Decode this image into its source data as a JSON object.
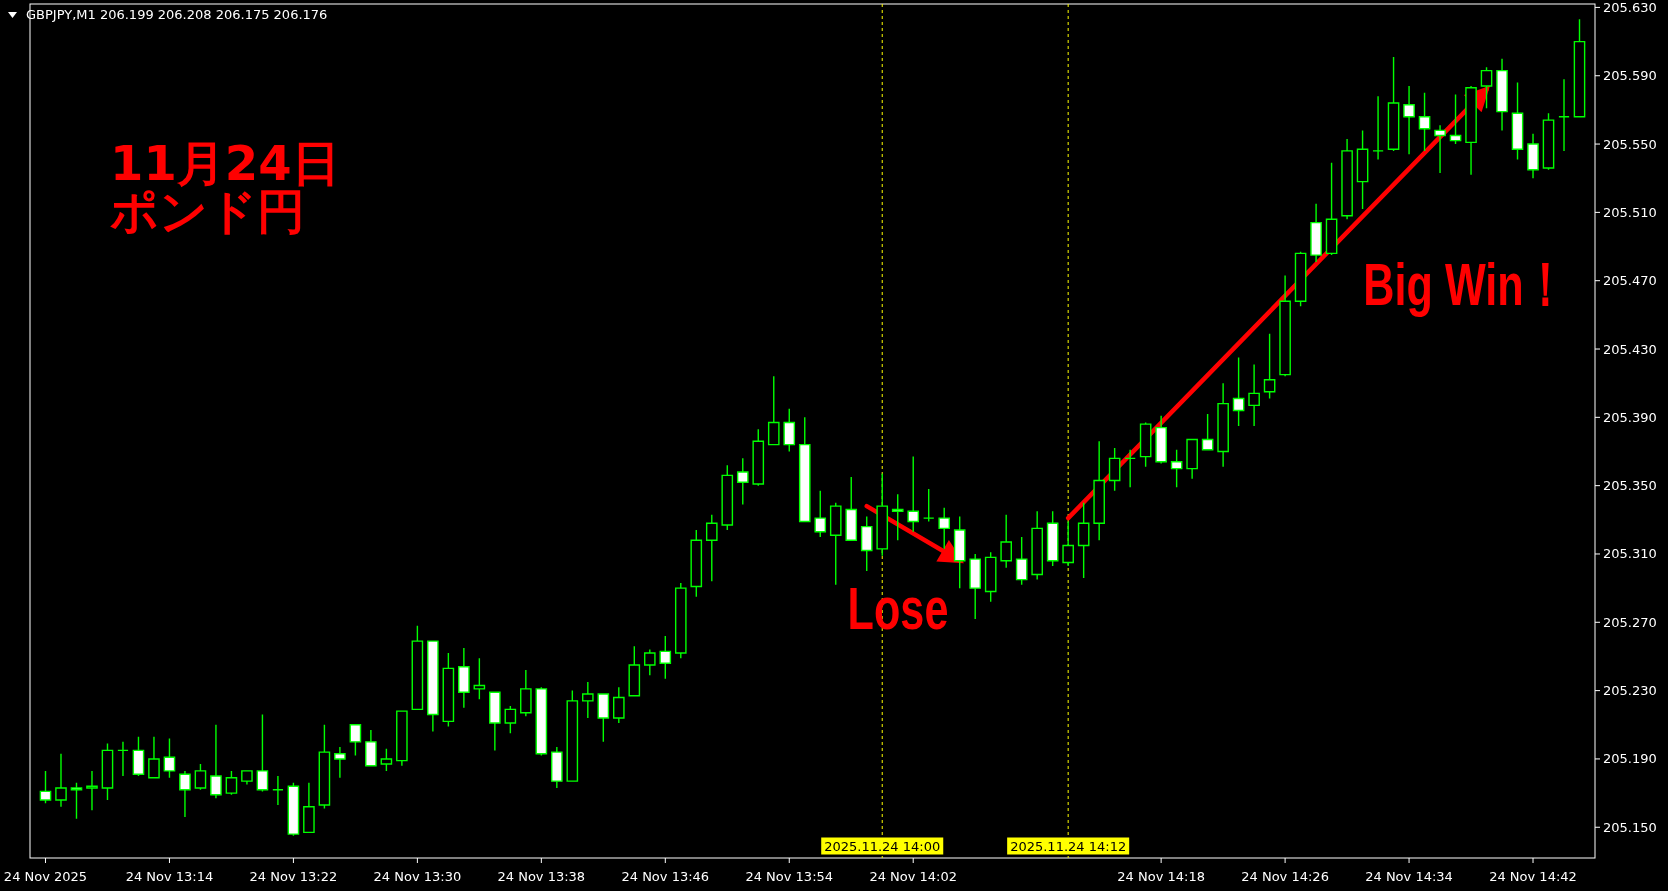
{
  "chart_data": {
    "type": "candlestick",
    "title": "GBPJPY,M1 206.199 206.208 206.175 206.176",
    "annotations": [
      "11月24日",
      "ポンド円",
      "Lose",
      "Big Win！"
    ],
    "color": "#00ff00",
    "x": [
      "2025-11-24T13:06",
      "2025-11-24T13:07",
      "2025-11-24T13:08",
      "2025-11-24T13:09",
      "2025-11-24T13:10",
      "2025-11-24T13:11",
      "2025-11-24T13:12",
      "2025-11-24T13:13",
      "2025-11-24T13:14",
      "2025-11-24T13:15",
      "2025-11-24T13:16",
      "2025-11-24T13:17",
      "2025-11-24T13:18",
      "2025-11-24T13:19",
      "2025-11-24T13:20",
      "2025-11-24T13:21",
      "2025-11-24T13:22",
      "2025-11-24T13:23",
      "2025-11-24T13:24",
      "2025-11-24T13:25",
      "2025-11-24T13:26",
      "2025-11-24T13:27",
      "2025-11-24T13:28",
      "2025-11-24T13:29",
      "2025-11-24T13:30",
      "2025-11-24T13:31",
      "2025-11-24T13:32",
      "2025-11-24T13:33",
      "2025-11-24T13:34",
      "2025-11-24T13:35",
      "2025-11-24T13:36",
      "2025-11-24T13:37",
      "2025-11-24T13:38",
      "2025-11-24T13:39",
      "2025-11-24T13:40",
      "2025-11-24T13:41",
      "2025-11-24T13:42",
      "2025-11-24T13:43",
      "2025-11-24T13:44",
      "2025-11-24T13:45",
      "2025-11-24T13:46",
      "2025-11-24T13:47",
      "2025-11-24T13:48",
      "2025-11-24T13:49",
      "2025-11-24T13:50",
      "2025-11-24T13:51",
      "2025-11-24T13:52",
      "2025-11-24T13:53",
      "2025-11-24T13:54",
      "2025-11-24T13:55",
      "2025-11-24T13:56",
      "2025-11-24T13:57",
      "2025-11-24T13:58",
      "2025-11-24T13:59",
      "2025-11-24T14:00",
      "2025-11-24T14:01",
      "2025-11-24T14:02",
      "2025-11-24T14:03",
      "2025-11-24T14:04",
      "2025-11-24T14:05",
      "2025-11-24T14:06",
      "2025-11-24T14:07",
      "2025-11-24T14:08",
      "2025-11-24T14:09",
      "2025-11-24T14:10",
      "2025-11-24T14:11",
      "2025-11-24T14:12",
      "2025-11-24T14:13",
      "2025-11-24T14:14",
      "2025-11-24T14:15",
      "2025-11-24T14:16",
      "2025-11-24T14:17",
      "2025-11-24T14:18",
      "2025-11-24T14:19",
      "2025-11-24T14:20",
      "2025-11-24T14:21",
      "2025-11-24T14:22",
      "2025-11-24T14:23",
      "2025-11-24T14:24",
      "2025-11-24T14:25",
      "2025-11-24T14:26",
      "2025-11-24T14:27",
      "2025-11-24T14:28",
      "2025-11-24T14:29",
      "2025-11-24T14:30",
      "2025-11-24T14:31",
      "2025-11-24T14:32",
      "2025-11-24T14:33",
      "2025-11-24T14:34",
      "2025-11-24T14:35",
      "2025-11-24T14:36",
      "2025-11-24T14:37",
      "2025-11-24T14:38",
      "2025-11-24T14:39",
      "2025-11-24T14:40",
      "2025-11-24T14:41",
      "2025-11-24T14:42",
      "2025-11-24T14:43",
      "2025-11-24T14:44",
      "2025-11-24T14:45"
    ],
    "ohlc": [
      [
        205.171,
        205.183,
        205.164,
        205.166
      ],
      [
        205.166,
        205.193,
        205.162,
        205.173
      ],
      [
        205.173,
        205.176,
        205.155,
        205.172
      ],
      [
        205.173,
        205.183,
        205.16,
        205.174
      ],
      [
        205.173,
        205.199,
        205.166,
        205.195
      ],
      [
        205.195,
        205.2,
        205.18,
        205.195
      ],
      [
        205.195,
        205.203,
        205.18,
        205.181
      ],
      [
        205.179,
        205.203,
        205.179,
        205.19
      ],
      [
        205.191,
        205.202,
        205.179,
        205.183
      ],
      [
        205.181,
        205.183,
        205.156,
        205.172
      ],
      [
        205.173,
        205.187,
        205.172,
        205.183
      ],
      [
        205.18,
        205.21,
        205.167,
        205.169
      ],
      [
        205.17,
        205.183,
        205.169,
        205.179
      ],
      [
        205.177,
        205.183,
        205.175,
        205.183
      ],
      [
        205.183,
        205.216,
        205.171,
        205.172
      ],
      [
        205.172,
        205.18,
        205.163,
        205.172
      ],
      [
        205.174,
        205.176,
        205.145,
        205.146
      ],
      [
        205.147,
        205.176,
        205.147,
        205.162
      ],
      [
        205.163,
        205.21,
        205.161,
        205.194
      ],
      [
        205.193,
        205.197,
        205.179,
        205.19
      ],
      [
        205.21,
        205.21,
        205.192,
        205.2
      ],
      [
        205.2,
        205.207,
        205.186,
        205.186
      ],
      [
        205.187,
        205.196,
        205.183,
        205.19
      ],
      [
        205.189,
        205.218,
        205.186,
        205.218
      ],
      [
        205.219,
        205.268,
        205.219,
        205.259
      ],
      [
        205.259,
        205.259,
        205.206,
        205.216
      ],
      [
        205.212,
        205.252,
        205.209,
        205.243
      ],
      [
        205.244,
        205.255,
        205.22,
        205.229
      ],
      [
        205.231,
        205.249,
        205.225,
        205.233
      ],
      [
        205.229,
        205.229,
        205.195,
        205.211
      ],
      [
        205.211,
        205.221,
        205.205,
        205.219
      ],
      [
        205.217,
        205.242,
        205.215,
        205.231
      ],
      [
        205.231,
        205.232,
        205.192,
        205.193
      ],
      [
        205.194,
        205.197,
        205.173,
        205.177
      ],
      [
        205.177,
        205.23,
        205.177,
        205.224
      ],
      [
        205.224,
        205.235,
        205.214,
        205.228
      ],
      [
        205.228,
        205.228,
        205.2,
        205.214
      ],
      [
        205.214,
        205.232,
        205.211,
        205.226
      ],
      [
        205.227,
        205.256,
        205.227,
        205.245
      ],
      [
        205.245,
        205.254,
        205.239,
        205.252
      ],
      [
        205.253,
        205.262,
        205.237,
        205.246
      ],
      [
        205.252,
        205.293,
        205.249,
        205.29
      ],
      [
        205.291,
        205.324,
        205.285,
        205.318
      ],
      [
        205.318,
        205.333,
        205.294,
        205.328
      ],
      [
        205.327,
        205.362,
        205.324,
        205.356
      ],
      [
        205.358,
        205.366,
        205.339,
        205.352
      ],
      [
        205.351,
        205.383,
        205.35,
        205.376
      ],
      [
        205.374,
        205.414,
        205.374,
        205.387
      ],
      [
        205.387,
        205.395,
        205.37,
        205.374
      ],
      [
        205.374,
        205.39,
        205.329,
        205.329
      ],
      [
        205.331,
        205.347,
        205.32,
        205.323
      ],
      [
        205.321,
        205.34,
        205.292,
        205.338
      ],
      [
        205.336,
        205.355,
        205.318,
        205.318
      ],
      [
        205.326,
        205.332,
        205.3,
        205.312
      ],
      [
        205.313,
        205.357,
        205.309,
        205.338
      ],
      [
        205.336,
        205.345,
        205.318,
        205.335
      ],
      [
        205.335,
        205.367,
        205.323,
        205.329
      ],
      [
        205.331,
        205.348,
        205.329,
        205.331
      ],
      [
        205.331,
        205.337,
        205.313,
        205.325
      ],
      [
        205.324,
        205.332,
        205.29,
        205.306
      ],
      [
        205.307,
        205.31,
        205.272,
        205.29
      ],
      [
        205.288,
        205.311,
        205.282,
        205.308
      ],
      [
        205.306,
        205.333,
        205.302,
        205.317
      ],
      [
        205.307,
        205.32,
        205.292,
        205.295
      ],
      [
        205.298,
        205.335,
        205.295,
        205.325
      ],
      [
        205.328,
        205.335,
        205.303,
        205.306
      ],
      [
        205.305,
        205.329,
        205.303,
        205.315
      ],
      [
        205.315,
        205.34,
        205.296,
        205.328
      ],
      [
        205.328,
        205.376,
        205.318,
        205.353
      ],
      [
        205.353,
        205.372,
        205.347,
        205.366
      ],
      [
        205.366,
        205.371,
        205.349,
        205.366
      ],
      [
        205.367,
        205.387,
        205.361,
        205.386
      ],
      [
        205.384,
        205.391,
        205.363,
        205.364
      ],
      [
        205.364,
        205.371,
        205.349,
        205.36
      ],
      [
        205.36,
        205.377,
        205.354,
        205.377
      ],
      [
        205.377,
        205.392,
        205.371,
        205.371
      ],
      [
        205.37,
        205.41,
        205.361,
        205.398
      ],
      [
        205.401,
        205.425,
        205.385,
        205.394
      ],
      [
        205.397,
        205.421,
        205.385,
        205.404
      ],
      [
        205.405,
        205.439,
        205.401,
        205.412
      ],
      [
        205.415,
        205.473,
        205.414,
        205.458
      ],
      [
        205.458,
        205.487,
        205.455,
        205.486
      ],
      [
        205.504,
        205.515,
        205.481,
        205.485
      ],
      [
        205.486,
        205.539,
        205.485,
        205.506
      ],
      [
        205.508,
        205.553,
        205.506,
        205.546
      ],
      [
        205.528,
        205.558,
        205.512,
        205.547
      ],
      [
        205.546,
        205.578,
        205.541,
        205.546
      ],
      [
        205.547,
        205.601,
        205.546,
        205.574
      ],
      [
        205.573,
        205.584,
        205.544,
        205.566
      ],
      [
        205.566,
        205.58,
        205.546,
        205.559
      ],
      [
        205.558,
        205.561,
        205.533,
        205.555
      ],
      [
        205.555,
        205.579,
        205.55,
        205.552
      ],
      [
        205.551,
        205.584,
        205.532,
        205.583
      ],
      [
        205.584,
        205.595,
        205.571,
        205.593
      ],
      [
        205.593,
        205.6,
        205.558,
        205.569
      ],
      [
        205.568,
        205.586,
        205.541,
        205.547
      ],
      [
        205.55,
        205.556,
        205.53,
        205.535
      ],
      [
        205.536,
        205.568,
        205.535,
        205.564
      ],
      [
        205.566,
        205.588,
        205.546,
        205.566
      ],
      [
        205.566,
        205.623,
        205.566,
        205.61
      ]
    ],
    "colors": [
      "#ffffff",
      "#000000",
      "#ffffff",
      "#000000",
      "#000000",
      "#00ff00",
      "#ffffff",
      "#000000",
      "#ffffff",
      "#ffffff",
      "#000000",
      "#ffffff",
      "#000000",
      "#000000",
      "#ffffff",
      "#00ff00",
      "#ffffff",
      "#000000",
      "#000000",
      "#ffffff",
      "#ffffff",
      "#ffffff",
      "#000000",
      "#000000",
      "#000000",
      "#ffffff",
      "#000000",
      "#ffffff",
      "#000000",
      "#ffffff",
      "#000000",
      "#000000",
      "#ffffff",
      "#ffffff",
      "#000000",
      "#000000",
      "#ffffff",
      "#000000",
      "#000000",
      "#000000",
      "#ffffff",
      "#000000",
      "#000000",
      "#000000",
      "#000000",
      "#ffffff",
      "#000000",
      "#000000",
      "#ffffff",
      "#ffffff",
      "#ffffff",
      "#000000",
      "#ffffff",
      "#ffffff",
      "#000000",
      "#ffffff",
      "#ffffff",
      "#00ff00",
      "#ffffff",
      "#ffffff",
      "#ffffff",
      "#000000",
      "#000000",
      "#ffffff",
      "#000000",
      "#ffffff",
      "#000000",
      "#000000",
      "#000000",
      "#000000",
      "#00ff00",
      "#000000",
      "#ffffff",
      "#ffffff",
      "#000000",
      "#ffffff",
      "#000000",
      "#ffffff",
      "#000000",
      "#000000",
      "#000000",
      "#000000",
      "#ffffff",
      "#000000",
      "#000000",
      "#000000",
      "#00ff00",
      "#000000",
      "#ffffff",
      "#ffffff",
      "#ffffff",
      "#ffffff",
      "#000000",
      "#000000",
      "#ffffff",
      "#ffffff",
      "#ffffff",
      "#000000",
      "#00ff00",
      "#000000"
    ],
    "series": [
      {
        "type": "line",
        "color": "#ff0000",
        "x": [
          "2025-11-24T13:59",
          "2025-11-24T14:05"
        ],
        "values": [
          205.338,
          205.306
        ]
      },
      {
        "type": "line",
        "color": "#ff0000",
        "x": [
          "2025-11-24T14:12",
          "2025-11-24T14:39"
        ],
        "values": [
          205.331,
          205.582
        ]
      }
    ],
    "ref_lines": [
      {
        "axis": "x",
        "value": "2025-11-24T14:00",
        "label": "2025.11.24 14:00",
        "color": "#ffff00",
        "line_style": "dashed"
      },
      {
        "axis": "x",
        "value": "2025-11-24T14:12",
        "label": "2025.11.24 14:12",
        "color": "#ffff00",
        "line_style": "dashed"
      }
    ],
    "xlim": [
      "2025-11-24T13:05",
      "2025-11-24T14:46"
    ],
    "xticks": [
      {
        "value": "2025-11-24T13:06",
        "label": "24 Nov 2025"
      },
      {
        "value": "2025-11-24T13:14",
        "label": "24 Nov 13:14"
      },
      {
        "value": "2025-11-24T13:22",
        "label": "24 Nov 13:22"
      },
      {
        "value": "2025-11-24T13:30",
        "label": "24 Nov 13:30"
      },
      {
        "value": "2025-11-24T13:38",
        "label": "24 Nov 13:38"
      },
      {
        "value": "2025-11-24T13:46",
        "label": "24 Nov 13:46"
      },
      {
        "value": "2025-11-24T13:54",
        "label": "24 Nov 13:54"
      },
      {
        "value": "2025-11-24T14:02",
        "label": "24 Nov 14:02"
      },
      {
        "value": "2025-11-24T14:18",
        "label": "24 Nov 14:18"
      },
      {
        "value": "2025-11-24T14:26",
        "label": "24 Nov 14:26"
      },
      {
        "value": "2025-11-24T14:34",
        "label": "24 Nov 14:34"
      },
      {
        "value": "2025-11-24T14:42",
        "label": "24 Nov 14:42"
      }
    ],
    "ylim": [
      205.132,
      205.632
    ],
    "yticks": [
      {
        "value": 205.15,
        "label": "205.150"
      },
      {
        "value": 205.19,
        "label": "205.190"
      },
      {
        "value": 205.23,
        "label": "205.230"
      },
      {
        "value": 205.27,
        "label": "205.270"
      },
      {
        "value": 205.31,
        "label": "205.310"
      },
      {
        "value": 205.35,
        "label": "205.350"
      },
      {
        "value": 205.39,
        "label": "205.390"
      },
      {
        "value": 205.43,
        "label": "205.430"
      },
      {
        "value": 205.47,
        "label": "205.470"
      },
      {
        "value": 205.51,
        "label": "205.510"
      },
      {
        "value": 205.55,
        "label": "205.550"
      },
      {
        "value": 205.59,
        "label": "205.590"
      },
      {
        "value": 205.63,
        "label": "205.630"
      }
    ]
  }
}
